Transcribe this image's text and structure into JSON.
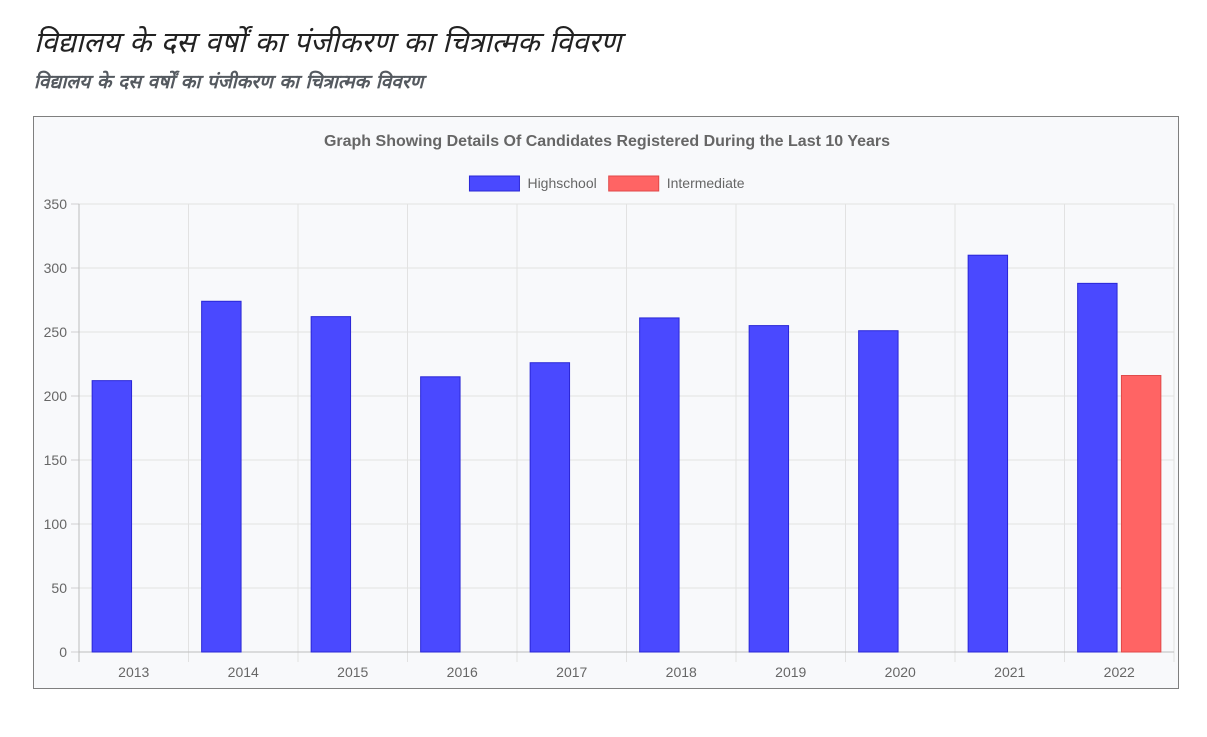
{
  "page": {
    "title": "विद्यालय के दस वर्षों का पंजीकरण का चित्रात्मक विवरण",
    "subtitle": "विद्यालय के दस वर्षों का पंजीकरण का चित्रात्मक विवरण"
  },
  "chart_data": {
    "type": "bar",
    "title": "Graph Showing Details Of Candidates Registered During the Last 10 Years",
    "categories": [
      "2013",
      "2014",
      "2015",
      "2016",
      "2017",
      "2018",
      "2019",
      "2020",
      "2021",
      "2022"
    ],
    "series": [
      {
        "name": "Highschool",
        "values": [
          212,
          274,
          262,
          215,
          226,
          261,
          255,
          251,
          310,
          288
        ],
        "color": "#4a49ff",
        "border_color": "#2a27d6"
      },
      {
        "name": "Intermediate",
        "values": [
          null,
          null,
          null,
          null,
          null,
          null,
          null,
          null,
          null,
          216
        ],
        "color": "#ff6464",
        "border_color": "#e04848"
      }
    ],
    "ylim": [
      0,
      350
    ],
    "yticks": [
      0,
      50,
      100,
      150,
      200,
      250,
      300,
      350
    ],
    "xlabel": "",
    "ylabel": "",
    "grid": true,
    "legend_position": "top-center"
  }
}
